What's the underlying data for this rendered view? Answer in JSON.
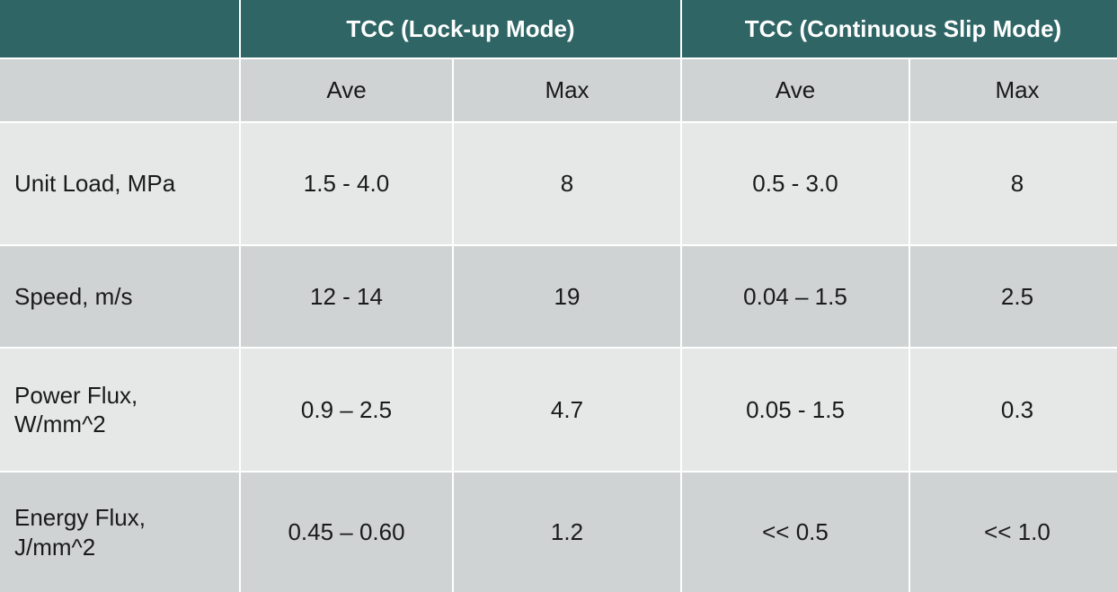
{
  "header": {
    "corner": "",
    "groups": [
      "TCC (Lock-up Mode)",
      "TCC (Continuous Slip Mode)"
    ]
  },
  "subheader": {
    "corner": "",
    "columns": [
      "Ave",
      "Max",
      "Ave",
      "Max"
    ]
  },
  "rows": [
    {
      "label": "Unit Load, MPa",
      "values": [
        "1.5 - 4.0",
        "8",
        "0.5 - 3.0",
        "8"
      ]
    },
    {
      "label": "Speed, m/s",
      "values": [
        "12 - 14",
        "19",
        "0.04 – 1.5",
        "2.5"
      ]
    },
    {
      "label": "Power Flux,\nW/mm^2",
      "values": [
        "0.9 – 2.5",
        "4.7",
        "0.05 - 1.5",
        "0.3"
      ]
    },
    {
      "label": "Energy Flux,\nJ/mm^2",
      "values": [
        "0.45 – 0.60",
        "1.2",
        "<< 0.5",
        "<< 1.0"
      ]
    }
  ],
  "colors": {
    "header_bg": "#2f6565",
    "subheader_bg": "#cfd3d3",
    "row_light": "#e6e8e8",
    "row_dark": "#cfd3d3"
  }
}
